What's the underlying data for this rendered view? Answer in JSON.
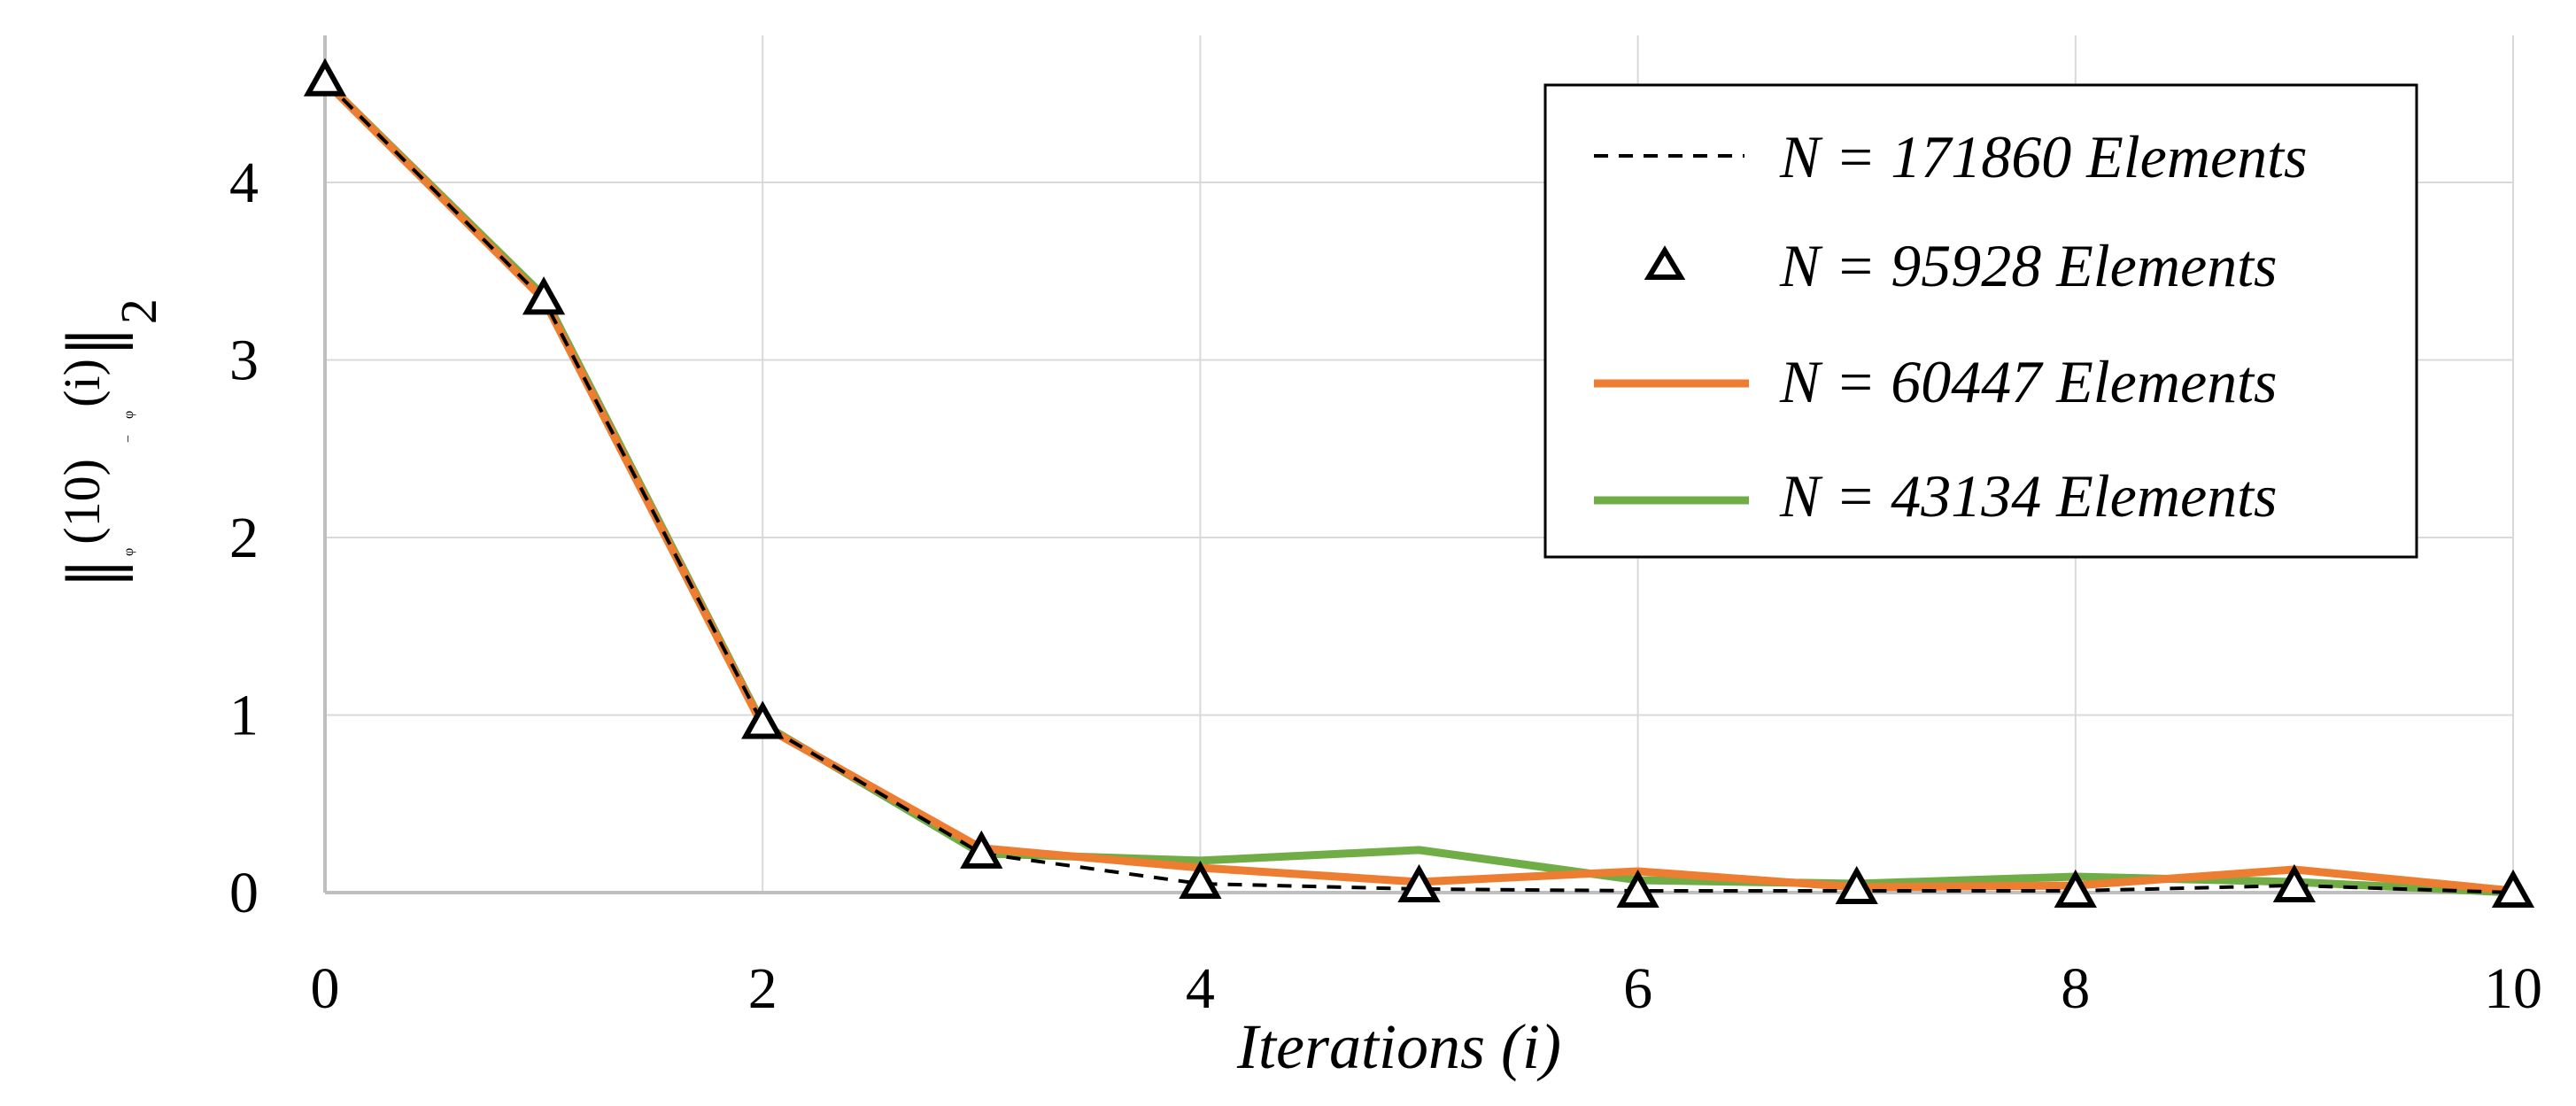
{
  "chart_data": {
    "type": "line",
    "title": "",
    "xlabel": "Iterations (i)",
    "ylabel": "‖φ(10) − φ(i)‖₂",
    "ylabel_parts": {
      "norm": "‖",
      "phi_a": "φ",
      "sup_a": "(10)",
      "minus": "−",
      "phi_b": "φ",
      "sup_b": "(i)",
      "sub": "2"
    },
    "x": [
      0,
      1,
      2,
      3,
      4,
      5,
      6,
      7,
      8,
      9,
      10
    ],
    "xlim": [
      0,
      10
    ],
    "ylim": [
      0,
      4.8
    ],
    "x_ticks": [
      "0",
      "2",
      "4",
      "6",
      "8",
      "10"
    ],
    "y_ticks": [
      "0",
      "1",
      "2",
      "3",
      "4"
    ],
    "grid": true,
    "legend_position": "top-right",
    "series": [
      {
        "name": "N = 171860 Elements",
        "style": "dashed",
        "color": "#000000",
        "values": [
          4.57,
          3.34,
          0.95,
          0.22,
          0.05,
          0.02,
          0.01,
          0.01,
          0.01,
          0.04,
          0.0
        ]
      },
      {
        "name": "N = 95928 Elements",
        "style": "triangle-markers",
        "color": "#000000",
        "values": [
          4.57,
          3.34,
          0.95,
          0.22,
          0.05,
          0.03,
          0.0,
          0.02,
          0.0,
          0.03,
          0.0
        ]
      },
      {
        "name": "N = 60447 Elements",
        "style": "solid",
        "color": "#ed7d31",
        "values": [
          4.57,
          3.34,
          0.94,
          0.25,
          0.14,
          0.06,
          0.12,
          0.03,
          0.04,
          0.13,
          0.01
        ]
      },
      {
        "name": "N = 43134 Elements",
        "style": "solid",
        "color": "#70ad47",
        "values": [
          4.57,
          3.36,
          0.95,
          0.22,
          0.18,
          0.24,
          0.07,
          0.05,
          0.09,
          0.06,
          0.0
        ]
      }
    ]
  }
}
